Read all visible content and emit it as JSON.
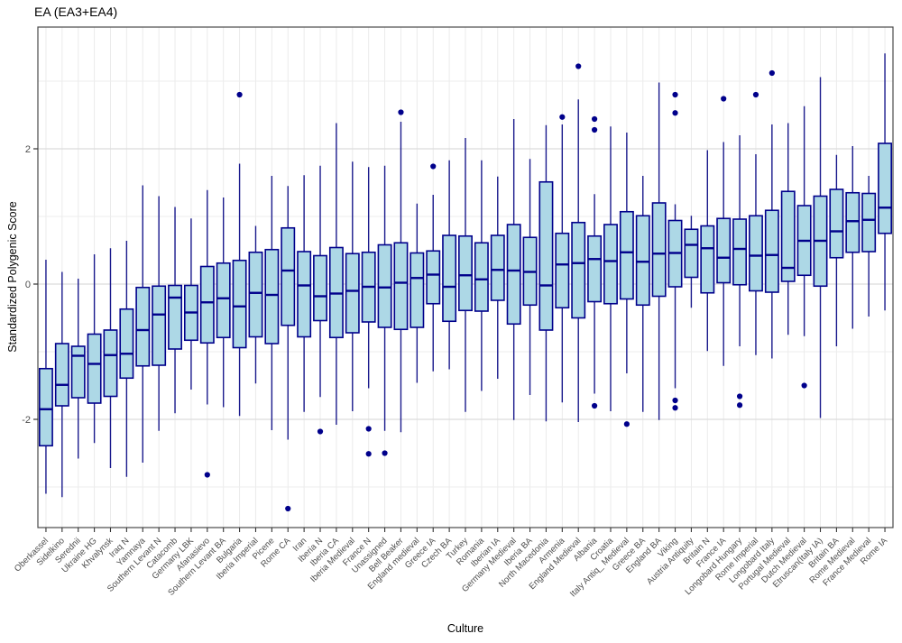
{
  "title": "EA (EA3+EA4)",
  "axis": {
    "x_label": "Culture",
    "y_label": "Standardized Polygenic Score"
  },
  "chart_data": {
    "type": "boxplot",
    "title": "EA (EA3+EA4)",
    "xlabel": "Culture",
    "ylabel": "Standardized Polygenic Score",
    "ylim": [
      -3.6,
      3.8
    ],
    "yticks": [
      -2,
      0,
      2
    ],
    "ytick_labels": [
      "-2",
      "0",
      "2"
    ],
    "minor_gridlines": [
      -3,
      -1,
      1,
      3
    ],
    "grid": true,
    "legend_position": "none",
    "colors": {
      "box_fill": "#ADD8E6",
      "box_stroke": "#00008B",
      "median": "#00008B",
      "whisker": "#1a1a8c",
      "outlier": "#00008B",
      "grid_major": "#dcdcdc",
      "grid_minor": "#ededed",
      "grid_vertical": "#ebebeb",
      "panel_border": "#4a4a4a",
      "axis_text": "#4d4d4d"
    },
    "categories": [
      "Oberkassel",
      "Sidelkino",
      "Serednii",
      "Ukraine HG",
      "Khvalynsk",
      "Iraq N",
      "Yamnaya",
      "Southern Levant N",
      "Catacomb",
      "Germany LBK",
      "Afanasievo",
      "Southern Levant BA",
      "Bulgaria",
      "Iberia Imperial",
      "Picene",
      "Rome CA",
      "Iran",
      "Iberia N",
      "Iberia CA",
      "Iberia Medieval",
      "France N",
      "Unassigned",
      "Bell Beaker",
      "England medieval",
      "Greece IA",
      "Czech BA",
      "Turkey",
      "Romania",
      "Iberian IA",
      "Germany Medieval",
      "Iberia BA",
      "North Macedonia",
      "Armenia",
      "England Medieval",
      "Albania",
      "Croatia",
      "Italy Antiq_ Medieval",
      "Greece BA",
      "England BA",
      "Viking",
      "Austria Antiquity",
      "Britain N",
      "France IA",
      "Longobard Hungary",
      "Rome Imperial",
      "Longobard Italy",
      "Portugal Medieval",
      "Dutch Medieval",
      "Etruscan(Italy IA)",
      "Britain BA",
      "Rome Medieval",
      "France Medieval",
      "Rome IA"
    ],
    "boxes": [
      {
        "culture": "Oberkassel",
        "low": -3.1,
        "q1": -2.39,
        "median": -1.85,
        "q3": -1.25,
        "high": 0.36,
        "outliers": []
      },
      {
        "culture": "Sidelkino",
        "low": -3.15,
        "q1": -1.8,
        "median": -1.49,
        "q3": -0.88,
        "high": 0.18,
        "outliers": []
      },
      {
        "culture": "Serednii",
        "low": -2.58,
        "q1": -1.68,
        "median": -1.06,
        "q3": -0.92,
        "high": 0.08,
        "outliers": []
      },
      {
        "culture": "Ukraine HG",
        "low": -2.35,
        "q1": -1.76,
        "median": -1.18,
        "q3": -0.74,
        "high": 0.44,
        "outliers": []
      },
      {
        "culture": "Khvalynsk",
        "low": -2.72,
        "q1": -1.66,
        "median": -1.05,
        "q3": -0.68,
        "high": 0.53,
        "outliers": []
      },
      {
        "culture": "Iraq N",
        "low": -2.85,
        "q1": -1.39,
        "median": -1.03,
        "q3": -0.37,
        "high": 0.64,
        "outliers": []
      },
      {
        "culture": "Yamnaya",
        "low": -2.64,
        "q1": -1.21,
        "median": -0.68,
        "q3": -0.05,
        "high": 1.46,
        "outliers": []
      },
      {
        "culture": "Southern Levant N",
        "low": -2.17,
        "q1": -1.2,
        "median": -0.45,
        "q3": -0.03,
        "high": 1.3,
        "outliers": []
      },
      {
        "culture": "Catacomb",
        "low": -1.91,
        "q1": -0.96,
        "median": -0.2,
        "q3": -0.02,
        "high": 1.14,
        "outliers": []
      },
      {
        "culture": "Germany LBK",
        "low": -1.56,
        "q1": -0.83,
        "median": -0.42,
        "q3": -0.02,
        "high": 0.97,
        "outliers": []
      },
      {
        "culture": "Afanasievo",
        "low": -1.78,
        "q1": -0.87,
        "median": -0.27,
        "q3": 0.26,
        "high": 1.39,
        "outliers": [
          -2.82
        ]
      },
      {
        "culture": "Southern Levant BA",
        "low": -1.82,
        "q1": -0.79,
        "median": -0.21,
        "q3": 0.31,
        "high": 1.28,
        "outliers": []
      },
      {
        "culture": "Bulgaria",
        "low": -1.95,
        "q1": -0.94,
        "median": -0.33,
        "q3": 0.35,
        "high": 1.78,
        "outliers": [
          2.8
        ]
      },
      {
        "culture": "Iberia Imperial",
        "low": -1.47,
        "q1": -0.78,
        "median": -0.13,
        "q3": 0.47,
        "high": 0.86,
        "outliers": []
      },
      {
        "culture": "Picene",
        "low": -2.16,
        "q1": -0.88,
        "median": -0.16,
        "q3": 0.51,
        "high": 1.6,
        "outliers": []
      },
      {
        "culture": "Rome CA",
        "low": -2.3,
        "q1": -0.61,
        "median": 0.2,
        "q3": 0.83,
        "high": 1.45,
        "outliers": [
          -3.32
        ]
      },
      {
        "culture": "Iran",
        "low": -1.89,
        "q1": -0.78,
        "median": -0.02,
        "q3": 0.48,
        "high": 1.61,
        "outliers": []
      },
      {
        "culture": "Iberia N",
        "low": -1.67,
        "q1": -0.54,
        "median": -0.18,
        "q3": 0.42,
        "high": 1.75,
        "outliers": [
          -2.18
        ]
      },
      {
        "culture": "Iberia CA",
        "low": -2.08,
        "q1": -0.79,
        "median": -0.14,
        "q3": 0.54,
        "high": 2.38,
        "outliers": []
      },
      {
        "culture": "Iberia Medieval",
        "low": -1.88,
        "q1": -0.72,
        "median": -0.1,
        "q3": 0.45,
        "high": 1.81,
        "outliers": []
      },
      {
        "culture": "France N",
        "low": -1.54,
        "q1": -0.56,
        "median": -0.04,
        "q3": 0.47,
        "high": 1.73,
        "outliers": [
          -2.14,
          -2.51
        ]
      },
      {
        "culture": "Unassigned",
        "low": -2.17,
        "q1": -0.64,
        "median": -0.05,
        "q3": 0.58,
        "high": 1.75,
        "outliers": [
          -2.5
        ]
      },
      {
        "culture": "Bell Beaker",
        "low": -2.19,
        "q1": -0.67,
        "median": 0.02,
        "q3": 0.61,
        "high": 2.4,
        "outliers": [
          2.54
        ]
      },
      {
        "culture": "England medieval",
        "low": -1.46,
        "q1": -0.64,
        "median": 0.09,
        "q3": 0.46,
        "high": 1.19,
        "outliers": []
      },
      {
        "culture": "Greece IA",
        "low": -1.29,
        "q1": -0.29,
        "median": 0.14,
        "q3": 0.49,
        "high": 1.32,
        "outliers": [
          1.74
        ]
      },
      {
        "culture": "Czech BA",
        "low": -1.26,
        "q1": -0.55,
        "median": -0.04,
        "q3": 0.72,
        "high": 1.83,
        "outliers": []
      },
      {
        "culture": "Turkey",
        "low": -1.89,
        "q1": -0.39,
        "median": 0.13,
        "q3": 0.71,
        "high": 2.16,
        "outliers": []
      },
      {
        "culture": "Romania",
        "low": -1.58,
        "q1": -0.4,
        "median": 0.07,
        "q3": 0.61,
        "high": 1.83,
        "outliers": []
      },
      {
        "culture": "Iberian IA",
        "low": -1.4,
        "q1": -0.24,
        "median": 0.21,
        "q3": 0.72,
        "high": 1.59,
        "outliers": []
      },
      {
        "culture": "Germany Medieval",
        "low": -2.01,
        "q1": -0.59,
        "median": 0.2,
        "q3": 0.88,
        "high": 2.44,
        "outliers": []
      },
      {
        "culture": "Iberia BA",
        "low": -1.64,
        "q1": -0.31,
        "median": 0.18,
        "q3": 0.69,
        "high": 1.85,
        "outliers": []
      },
      {
        "culture": "North Macedonia",
        "low": -2.03,
        "q1": -0.68,
        "median": -0.02,
        "q3": 1.51,
        "high": 2.35,
        "outliers": []
      },
      {
        "culture": "Armenia",
        "low": -1.75,
        "q1": -0.35,
        "median": 0.29,
        "q3": 0.75,
        "high": 2.36,
        "outliers": [
          2.47
        ]
      },
      {
        "culture": "England Medieval",
        "low": -2.04,
        "q1": -0.5,
        "median": 0.31,
        "q3": 0.91,
        "high": 2.73,
        "outliers": [
          3.22
        ]
      },
      {
        "culture": "Albania",
        "low": -1.62,
        "q1": -0.26,
        "median": 0.37,
        "q3": 0.71,
        "high": 1.33,
        "outliers": [
          -1.8,
          2.28,
          2.44
        ]
      },
      {
        "culture": "Croatia",
        "low": -1.88,
        "q1": -0.29,
        "median": 0.34,
        "q3": 0.88,
        "high": 2.33,
        "outliers": []
      },
      {
        "culture": "Italy Antiq_ Medieval",
        "low": -1.32,
        "q1": -0.22,
        "median": 0.47,
        "q3": 1.07,
        "high": 2.24,
        "outliers": [
          -2.07
        ]
      },
      {
        "culture": "Greece BA",
        "low": -1.89,
        "q1": -0.31,
        "median": 0.33,
        "q3": 1.01,
        "high": 1.6,
        "outliers": []
      },
      {
        "culture": "England BA",
        "low": -2.01,
        "q1": -0.18,
        "median": 0.45,
        "q3": 1.2,
        "high": 2.98,
        "outliers": []
      },
      {
        "culture": "Viking",
        "low": -1.54,
        "q1": -0.04,
        "median": 0.46,
        "q3": 0.94,
        "high": 1.18,
        "outliers": [
          -1.83,
          -1.72,
          2.53,
          2.8
        ]
      },
      {
        "culture": "Austria Antiquity",
        "low": -0.35,
        "q1": 0.1,
        "median": 0.58,
        "q3": 0.81,
        "high": 1.01,
        "outliers": []
      },
      {
        "culture": "Britain N",
        "low": -0.99,
        "q1": -0.13,
        "median": 0.53,
        "q3": 0.86,
        "high": 1.98,
        "outliers": []
      },
      {
        "culture": "France IA",
        "low": -1.21,
        "q1": 0.02,
        "median": 0.39,
        "q3": 0.97,
        "high": 2.1,
        "outliers": [
          2.74
        ]
      },
      {
        "culture": "Longobard Hungary",
        "low": -0.92,
        "q1": -0.01,
        "median": 0.52,
        "q3": 0.96,
        "high": 2.2,
        "outliers": [
          -1.79,
          -1.66
        ]
      },
      {
        "culture": "Rome Imperial",
        "low": -1.05,
        "q1": -0.1,
        "median": 0.42,
        "q3": 1.01,
        "high": 1.92,
        "outliers": [
          2.8
        ]
      },
      {
        "culture": "Longobard Italy",
        "low": -1.1,
        "q1": -0.12,
        "median": 0.43,
        "q3": 1.09,
        "high": 2.36,
        "outliers": [
          3.12
        ]
      },
      {
        "culture": "Portugal Medieval",
        "low": -0.75,
        "q1": 0.04,
        "median": 0.24,
        "q3": 1.37,
        "high": 2.38,
        "outliers": []
      },
      {
        "culture": "Dutch Medieval",
        "low": -0.77,
        "q1": 0.13,
        "median": 0.64,
        "q3": 1.16,
        "high": 2.63,
        "outliers": [
          -1.5
        ]
      },
      {
        "culture": "Etruscan(Italy IA)",
        "low": -1.98,
        "q1": -0.03,
        "median": 0.64,
        "q3": 1.3,
        "high": 3.06,
        "outliers": []
      },
      {
        "culture": "Britain BA",
        "low": -0.92,
        "q1": 0.39,
        "median": 0.78,
        "q3": 1.4,
        "high": 1.91,
        "outliers": []
      },
      {
        "culture": "Rome Medieval",
        "low": -0.66,
        "q1": 0.47,
        "median": 0.93,
        "q3": 1.35,
        "high": 2.04,
        "outliers": []
      },
      {
        "culture": "France Medieval",
        "low": -0.48,
        "q1": 0.48,
        "median": 0.95,
        "q3": 1.34,
        "high": 1.6,
        "outliers": []
      },
      {
        "culture": "Rome IA",
        "low": -0.39,
        "q1": 0.75,
        "median": 1.13,
        "q3": 2.08,
        "high": 3.41,
        "outliers": []
      }
    ]
  }
}
